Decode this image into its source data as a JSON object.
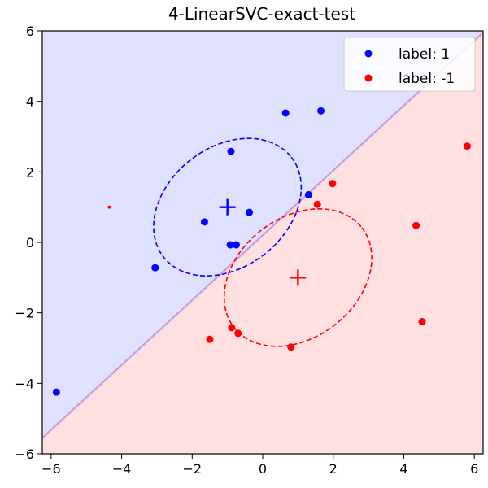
{
  "chart_data": {
    "type": "scatter",
    "title": "4-LinearSVC-exact-test",
    "xlabel": "",
    "ylabel": "",
    "xlim": [
      -6.25,
      6.25
    ],
    "ylim": [
      -6,
      6
    ],
    "xticks": [
      -6,
      -4,
      -2,
      0,
      2,
      4,
      6
    ],
    "yticks": [
      -6,
      -4,
      -2,
      0,
      2,
      4,
      6
    ],
    "grid": false,
    "legend_position": "top-right",
    "colors": {
      "class_pos": "#0000ff",
      "class_neg": "#ff0000",
      "region_pos": "#e0e0ff",
      "region_neg": "#ffe0e0",
      "boundary": "#c89be0"
    },
    "decision_boundary": {
      "slope": 0.92,
      "intercept": 0.2
    },
    "series": [
      {
        "name": "label: 1",
        "color": "#0000ff",
        "points": [
          [
            -5.85,
            -4.25
          ],
          [
            -3.05,
            -0.72
          ],
          [
            -1.65,
            0.58
          ],
          [
            -0.9,
            2.58
          ],
          [
            -0.92,
            -0.07
          ],
          [
            -0.75,
            -0.07
          ],
          [
            -0.38,
            0.85
          ],
          [
            0.65,
            3.67
          ],
          [
            1.65,
            3.73
          ],
          [
            1.3,
            1.35
          ]
        ],
        "mean": [
          -1,
          1
        ],
        "ellipse": {
          "cx": -1,
          "cy": 1,
          "rx": 2.3,
          "ry": 1.7,
          "angle_deg": 38
        }
      },
      {
        "name": "label: -1",
        "color": "#ff0000",
        "points": [
          [
            -4.35,
            1.0
          ],
          [
            -1.5,
            -2.75
          ],
          [
            -0.88,
            -2.42
          ],
          [
            -0.7,
            -2.58
          ],
          [
            0.8,
            -2.97
          ],
          [
            1.55,
            1.08
          ],
          [
            1.98,
            1.67
          ],
          [
            4.35,
            0.48
          ],
          [
            4.52,
            -2.25
          ],
          [
            5.8,
            2.73
          ]
        ],
        "small_point_index": 0,
        "mean": [
          1,
          -1
        ],
        "ellipse": {
          "cx": 1,
          "cy": -1,
          "rx": 2.3,
          "ry": 1.7,
          "angle_deg": 38
        }
      }
    ]
  }
}
